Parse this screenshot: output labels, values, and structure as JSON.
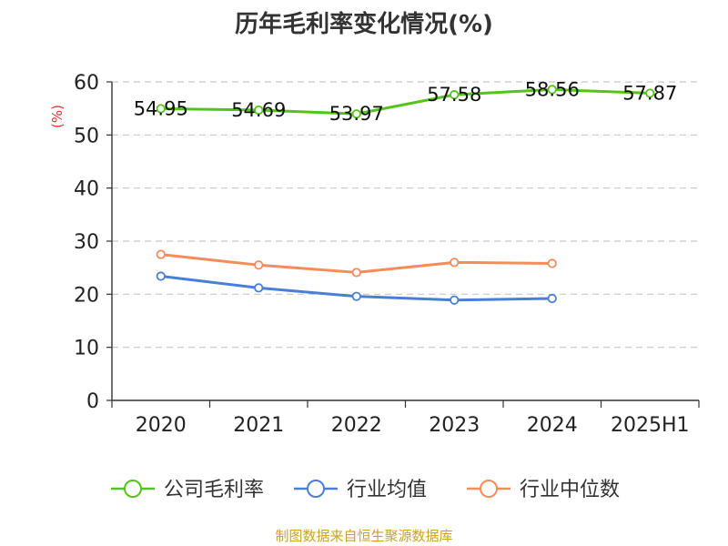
{
  "title": "历年毛利率变化情况(%)",
  "source": "制图数据来自恒生聚源数据库",
  "chart_data": {
    "type": "line",
    "title": "历年毛利率变化情况(%)",
    "ylabel": "(%)",
    "xlabel": "",
    "categories": [
      "2020",
      "2021",
      "2022",
      "2023",
      "2024",
      "2025H1"
    ],
    "ylim": [
      0,
      60
    ],
    "yticks": [
      0,
      10,
      20,
      30,
      40,
      50,
      60
    ],
    "grid": true,
    "legend_position": "bottom",
    "series": [
      {
        "name": "公司毛利率",
        "color": "#52c41a",
        "values": [
          54.95,
          54.69,
          53.97,
          57.58,
          58.56,
          57.87
        ],
        "labels": [
          "54.95",
          "54.69",
          "53.97",
          "57.58",
          "58.56",
          "57.87"
        ]
      },
      {
        "name": "行业均值",
        "color": "#4a7fd6",
        "values": [
          23.4,
          21.2,
          19.6,
          18.9,
          19.2,
          null
        ]
      },
      {
        "name": "行业中位数",
        "color": "#f58c5a",
        "values": [
          27.5,
          25.5,
          24.1,
          26.0,
          25.8,
          null
        ]
      }
    ]
  }
}
